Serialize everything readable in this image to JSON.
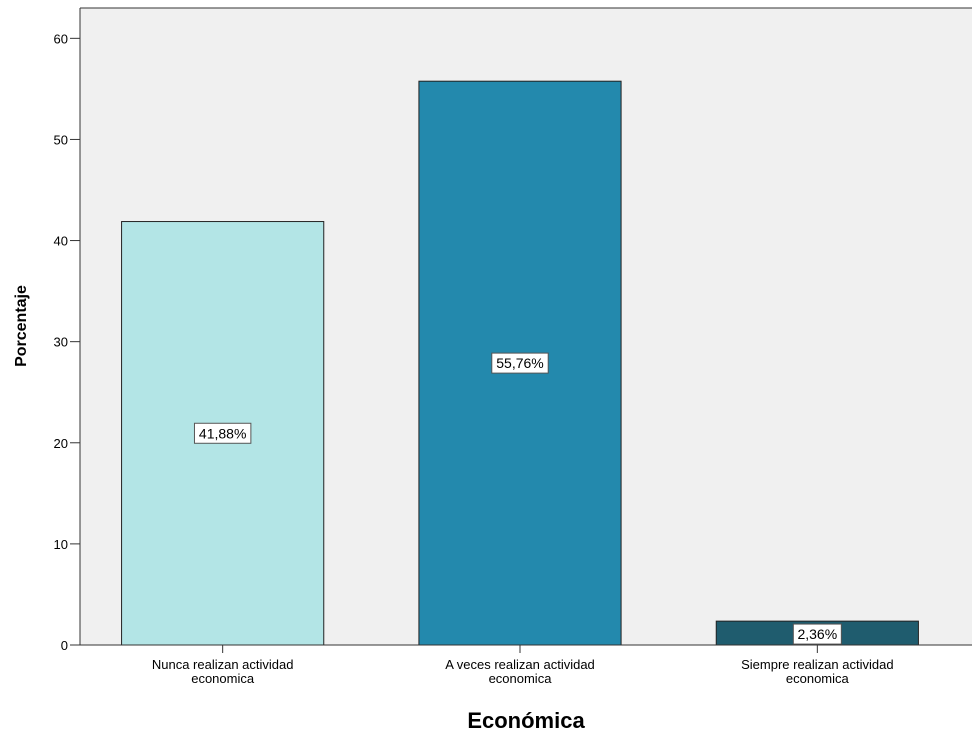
{
  "chart_data": {
    "type": "bar",
    "title": "",
    "xlabel": "Económica",
    "ylabel": "Porcentaje",
    "ylim": [
      0,
      63
    ],
    "yticks": [
      0,
      10,
      20,
      30,
      40,
      50,
      60
    ],
    "grid": false,
    "legend": "none",
    "categories": [
      [
        "Nunca realizan actividad",
        "economica"
      ],
      [
        "A veces realizan actividad",
        "economica"
      ],
      [
        "Siempre realizan actividad",
        "economica"
      ]
    ],
    "values": [
      41.88,
      55.76,
      2.36
    ],
    "data_labels": [
      "41,88%",
      "55,76%",
      "2,36%"
    ],
    "colors": [
      "#b3e5e6",
      "#2389ad",
      "#1f5c6e"
    ],
    "plot_background": "#f0f0f0"
  }
}
